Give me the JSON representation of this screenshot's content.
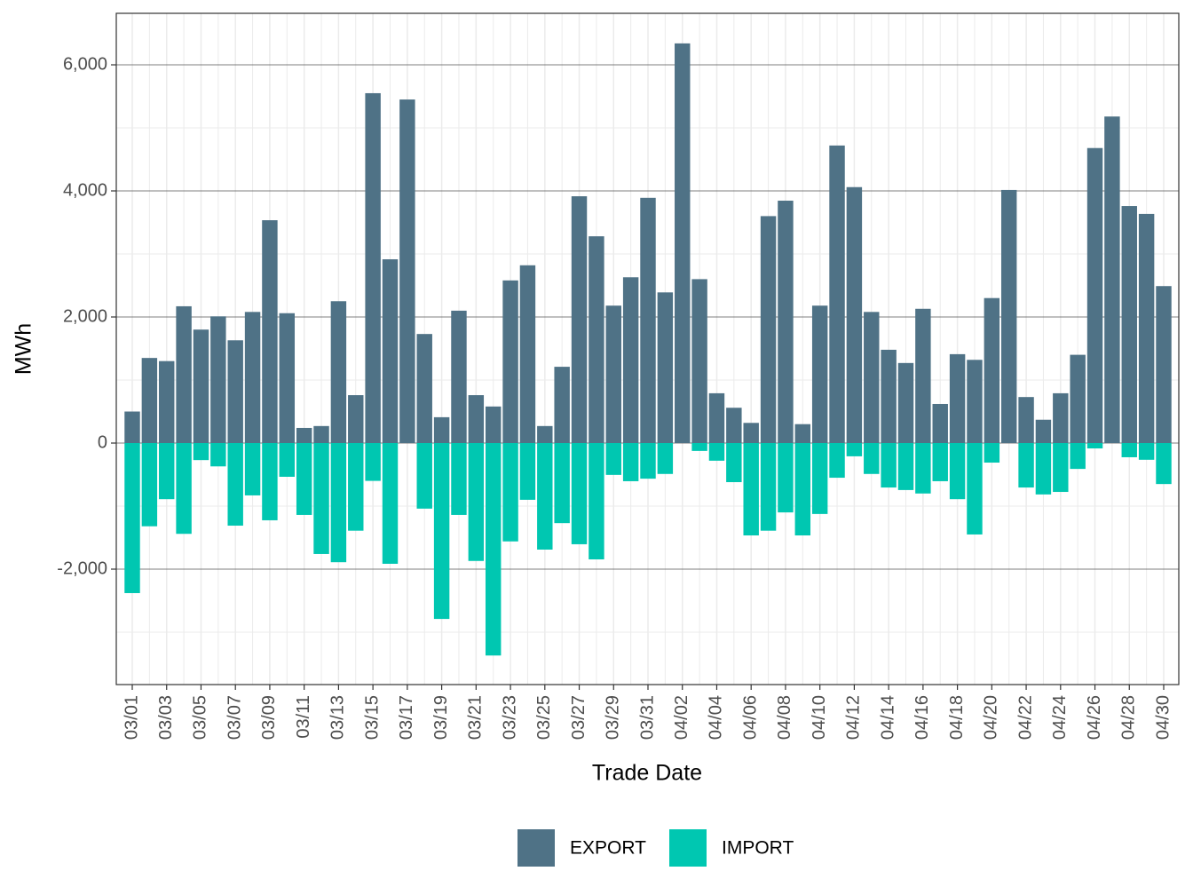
{
  "chart_data": {
    "type": "bar",
    "x_label": "Trade Date",
    "y_label": "MWh",
    "categories": [
      "03/01",
      null,
      "03/03",
      null,
      "03/05",
      null,
      "03/07",
      null,
      "03/09",
      null,
      "03/11",
      null,
      "03/13",
      null,
      "03/15",
      null,
      "03/17",
      null,
      "03/19",
      null,
      "03/21",
      null,
      "03/23",
      null,
      "03/25",
      null,
      "03/27",
      null,
      "03/29",
      null,
      "03/31",
      null,
      "04/02",
      null,
      "04/04",
      null,
      "04/06",
      null,
      "04/08",
      null,
      "04/10",
      null,
      "04/12",
      null,
      "04/14",
      null,
      "04/16",
      null,
      "04/18",
      null,
      "04/20",
      null,
      "04/22",
      null,
      "04/24",
      null,
      "04/26",
      null,
      "04/28",
      null,
      "04/30"
    ],
    "series": [
      {
        "name": "EXPORT",
        "color": "#4f7286",
        "values": [
          500,
          1350,
          1300,
          2170,
          1800,
          2010,
          1630,
          2080,
          3535,
          2060,
          240,
          270,
          2250,
          760,
          5550,
          2915,
          5450,
          1730,
          410,
          2100,
          760,
          580,
          2580,
          2820,
          270,
          1210,
          3915,
          3280,
          2180,
          2630,
          3890,
          2390,
          6340,
          2600,
          790,
          560,
          320,
          3600,
          3845,
          300,
          2180,
          4720,
          4060,
          2080,
          1480,
          1270,
          2130,
          620,
          1410,
          1320,
          2300,
          4015,
          730,
          370,
          790,
          1400,
          4680,
          5180,
          3760,
          3635,
          2490
        ]
      },
      {
        "name": "IMPORT",
        "color": "#00c7b1",
        "values": [
          -2380,
          -1320,
          -890,
          -1440,
          -270,
          -370,
          -1310,
          -830,
          -1225,
          -535,
          -1140,
          -1760,
          -1890,
          -1390,
          -600,
          -1915,
          0,
          -1040,
          -2790,
          -1140,
          -1870,
          -3370,
          -1560,
          -900,
          -1690,
          -1270,
          -1605,
          -1845,
          -505,
          -605,
          -565,
          -490,
          0,
          -125,
          -280,
          -620,
          -1465,
          -1390,
          -1100,
          -1465,
          -1125,
          -550,
          -210,
          -490,
          -705,
          -745,
          -800,
          -605,
          -890,
          -1450,
          -310,
          0,
          -705,
          -815,
          -775,
          -410,
          -85,
          0,
          -225,
          -265,
          -650
        ]
      }
    ],
    "ylim": [
      -3831,
      6817
    ],
    "yticks": [
      {
        "value": -2000,
        "label": "-2,000"
      },
      0,
      {
        "value": 2000,
        "label": "2,000"
      },
      {
        "value": 4000,
        "label": "4,000"
      },
      {
        "value": 6000,
        "label": "6,000"
      }
    ],
    "grid": true,
    "legend": "bottom"
  }
}
